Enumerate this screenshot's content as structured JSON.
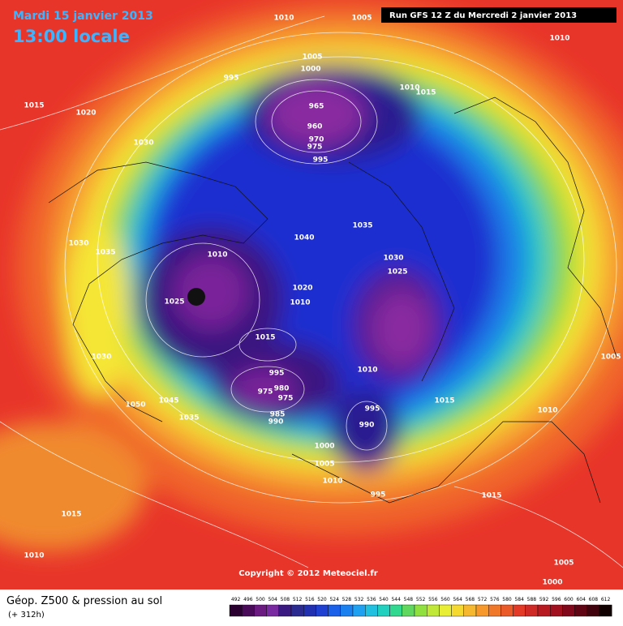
{
  "header": {
    "date": "Mardi 15 janvier 2013",
    "time": "13:00 locale",
    "run": "Run GFS 12 Z du Mercredi 2 janvier 2013"
  },
  "copyright": "Copyright © 2012 Meteociel.fr",
  "footer": {
    "title": "Géop. Z500 & pression au sol",
    "lead": "(+ 312h)"
  },
  "scale": [
    492,
    496,
    500,
    504,
    508,
    512,
    516,
    520,
    524,
    528,
    532,
    536,
    540,
    544,
    548,
    552,
    556,
    560,
    564,
    568,
    572,
    576,
    580,
    584,
    588,
    592,
    596,
    600,
    604,
    608,
    612
  ],
  "isobar_labels": [
    1010,
    1005,
    1010,
    1005,
    1000,
    995,
    1010,
    1015,
    1015,
    1020,
    1030,
    965,
    960,
    970,
    975,
    995,
    1035,
    1040,
    1030,
    1035,
    1010,
    1030,
    1025,
    1020,
    1010,
    1025,
    1015,
    1030,
    1005,
    995,
    1010,
    980,
    975,
    975,
    1015,
    1050,
    1045,
    995,
    985,
    990,
    1035,
    990,
    1010,
    1000,
    1005,
    1010,
    995,
    1015,
    1015,
    1010,
    1005,
    1000
  ]
}
